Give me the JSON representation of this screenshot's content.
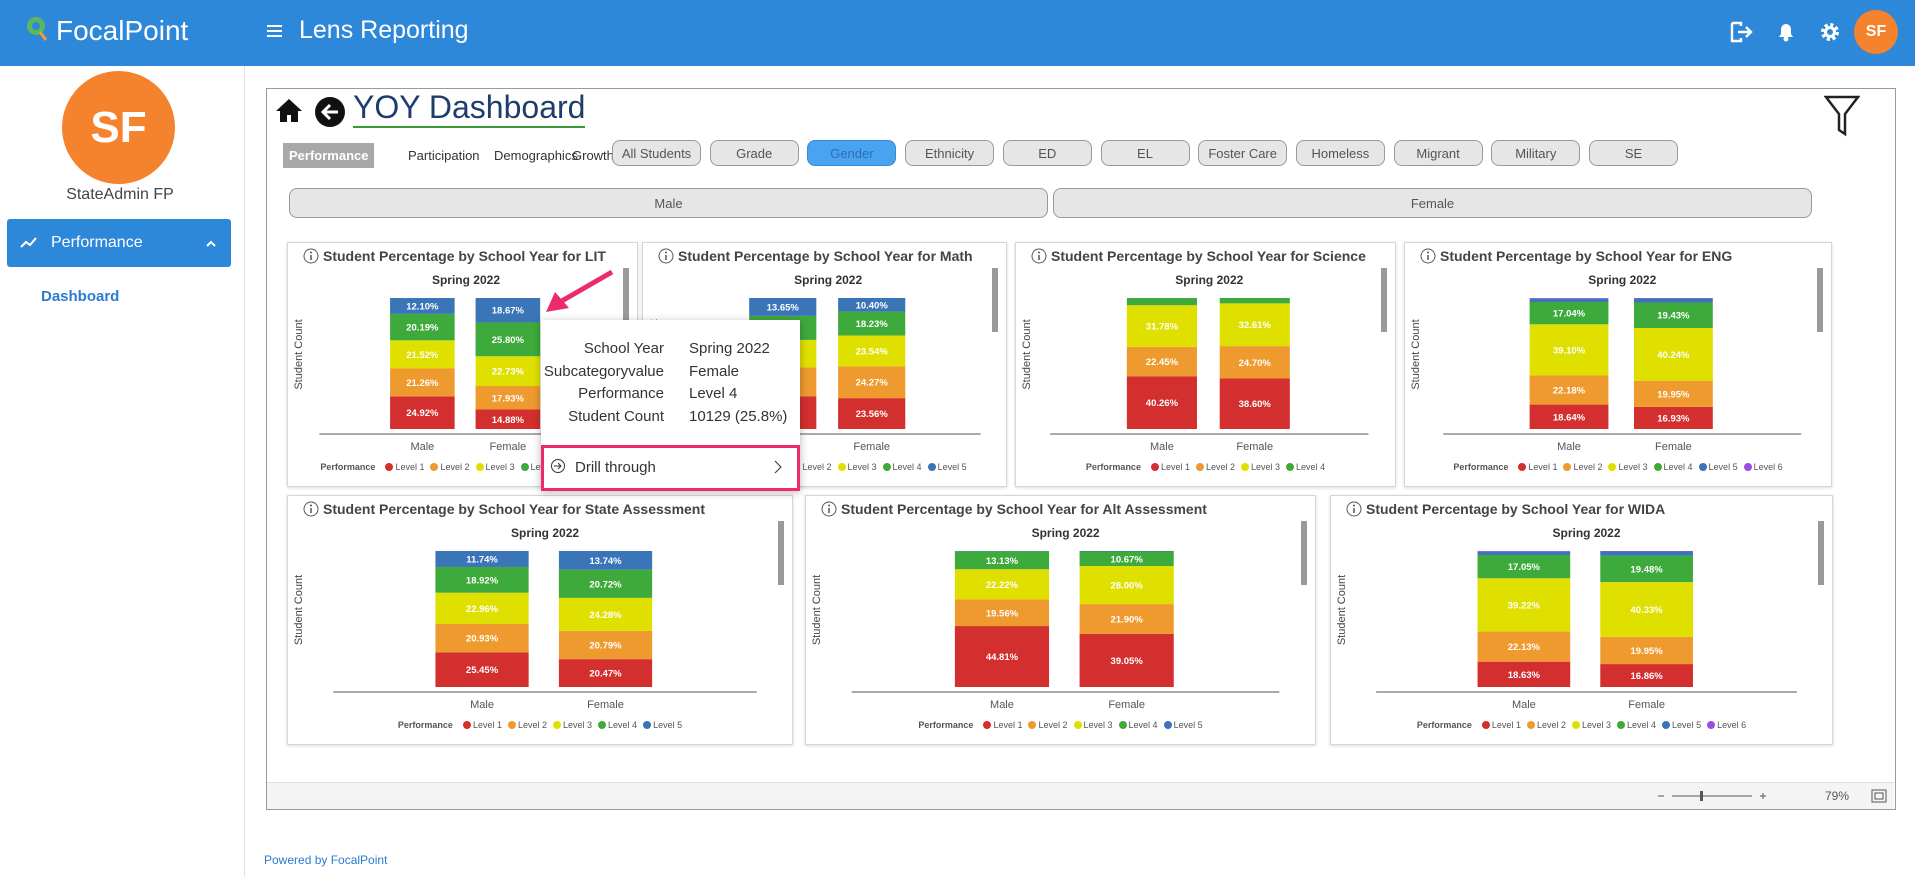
{
  "header": {
    "logo": "FocalPoint",
    "title": "Lens Reporting",
    "avatar": "SF"
  },
  "sidebar": {
    "avatar": "SF",
    "user": "StateAdmin FP",
    "menu": "Performance",
    "submenu": "Dashboard"
  },
  "dashboard": {
    "title": "YOY Dashboard",
    "tabs": [
      "Performance",
      "Participation",
      "Demographics",
      "Growth"
    ],
    "filters": [
      "All Students",
      "Grade",
      "Gender",
      "Ethnicity",
      "ED",
      "EL",
      "Foster Care",
      "Homeless",
      "Migrant",
      "Military",
      "SE"
    ],
    "groups": [
      "Male",
      "Female"
    ],
    "zoom": "79%"
  },
  "tooltip": {
    "rows": [
      [
        "School Year",
        "Spring 2022"
      ],
      [
        "Subcategoryvalue",
        "Female"
      ],
      [
        "Performance",
        "Level 4"
      ],
      [
        "Student Count",
        "10129 (25.8%)"
      ]
    ],
    "action": "Drill through"
  },
  "footer": "Powered by FocalPoint",
  "chart_data": [
    {
      "type": "bar",
      "stacked": true,
      "title": "Student Percentage by School Year for LIT",
      "subtitle": "Spring 2022",
      "y_label": "Student Count",
      "categories": [
        "Male",
        "Female"
      ],
      "legend_title": "Performance",
      "series": [
        {
          "name": "Level 1",
          "color": "#d32f2f",
          "values": [
            24.92,
            14.88
          ],
          "value_labels": [
            "24.92%",
            "14.88%"
          ]
        },
        {
          "name": "Level 2",
          "color": "#ee9a2e",
          "values": [
            21.26,
            17.93
          ],
          "value_labels": [
            "21.26%",
            "17.93%"
          ]
        },
        {
          "name": "Level 3",
          "color": "#e0e000",
          "values": [
            21.52,
            22.73
          ],
          "value_labels": [
            "21.52%",
            "22.73%"
          ]
        },
        {
          "name": "Level 4",
          "color": "#3eaa3c",
          "values": [
            20.19,
            25.8
          ],
          "value_labels": [
            "20.19%",
            "25.80%"
          ]
        },
        {
          "name": "Level 5",
          "color": "#3a75b8",
          "values": [
            12.1,
            18.67
          ],
          "value_labels": [
            "12.10%",
            "18.67%"
          ]
        }
      ]
    },
    {
      "type": "bar",
      "stacked": true,
      "title": "Student Percentage by School Year for Math",
      "subtitle": "Spring 2022",
      "y_label": "Student Count",
      "categories": [
        "Male",
        "Female"
      ],
      "legend_title": "Performance",
      "series": [
        {
          "name": "Level 1",
          "color": "#d32f2f",
          "values": [
            25,
            23.56
          ],
          "value_labels": [
            null,
            "23.56%"
          ]
        },
        {
          "name": "Level 2",
          "color": "#ee9a2e",
          "values": [
            22,
            24.27
          ],
          "value_labels": [
            null,
            "24.27%"
          ]
        },
        {
          "name": "Level 3",
          "color": "#e0e000",
          "values": [
            21,
            23.54
          ],
          "value_labels": [
            null,
            "23.54%"
          ]
        },
        {
          "name": "Level 4",
          "color": "#3eaa3c",
          "values": [
            18.35,
            18.23
          ],
          "value_labels": [
            null,
            "18.23%"
          ]
        },
        {
          "name": "Level 5",
          "color": "#3a75b8",
          "values": [
            13.65,
            10.4
          ],
          "value_labels": [
            "13.65%",
            "10.40%"
          ]
        }
      ]
    },
    {
      "type": "bar",
      "stacked": true,
      "title": "Student Percentage by School Year for Science",
      "subtitle": "Spring 2022",
      "y_label": "Student Count",
      "categories": [
        "Male",
        "Female"
      ],
      "legend_title": "Performance",
      "series": [
        {
          "name": "Level 1",
          "color": "#d32f2f",
          "values": [
            40.26,
            38.6
          ],
          "value_labels": [
            "40.26%",
            "38.60%"
          ]
        },
        {
          "name": "Level 2",
          "color": "#ee9a2e",
          "values": [
            22.45,
            24.7
          ],
          "value_labels": [
            "22.45%",
            "24.70%"
          ]
        },
        {
          "name": "Level 3",
          "color": "#e0e000",
          "values": [
            31.78,
            32.61
          ],
          "value_labels": [
            "31.78%",
            "32.61%"
          ]
        },
        {
          "name": "Level 4",
          "color": "#3eaa3c",
          "values": [
            5.5,
            4.1
          ],
          "value_labels": [
            null,
            null
          ]
        }
      ]
    },
    {
      "type": "bar",
      "stacked": true,
      "title": "Student Percentage by School Year for ENG",
      "subtitle": "Spring 2022",
      "y_label": "Student Count",
      "categories": [
        "Male",
        "Female"
      ],
      "legend_title": "Performance",
      "series": [
        {
          "name": "Level 1",
          "color": "#d32f2f",
          "values": [
            18.64,
            16.93
          ],
          "value_labels": [
            "18.64%",
            "16.93%"
          ]
        },
        {
          "name": "Level 2",
          "color": "#ee9a2e",
          "values": [
            22.18,
            19.95
          ],
          "value_labels": [
            "22.18%",
            "19.95%"
          ]
        },
        {
          "name": "Level 3",
          "color": "#e0e000",
          "values": [
            39.1,
            40.24
          ],
          "value_labels": [
            "39.10%",
            "40.24%"
          ]
        },
        {
          "name": "Level 4",
          "color": "#3eaa3c",
          "values": [
            17.04,
            19.43
          ],
          "value_labels": [
            "17.04%",
            "19.43%"
          ]
        },
        {
          "name": "Level 5",
          "color": "#3a75b8",
          "values": [
            2.5,
            3
          ],
          "value_labels": [
            null,
            null
          ]
        },
        {
          "name": "Level 6",
          "color": "#9b4de0",
          "values": [
            0.54,
            0.45
          ],
          "value_labels": [
            null,
            null
          ]
        }
      ]
    },
    {
      "type": "bar",
      "stacked": true,
      "title": "Student Percentage by School Year for State Assessment",
      "subtitle": "Spring 2022",
      "y_label": "Student Count",
      "categories": [
        "Male",
        "Female"
      ],
      "legend_title": "Performance",
      "series": [
        {
          "name": "Level 1",
          "color": "#d32f2f",
          "values": [
            25.45,
            20.47
          ],
          "value_labels": [
            "25.45%",
            "20.47%"
          ]
        },
        {
          "name": "Level 2",
          "color": "#ee9a2e",
          "values": [
            20.93,
            20.79
          ],
          "value_labels": [
            "20.93%",
            "20.79%"
          ]
        },
        {
          "name": "Level 3",
          "color": "#e0e000",
          "values": [
            22.96,
            24.28
          ],
          "value_labels": [
            "22.96%",
            "24.28%"
          ]
        },
        {
          "name": "Level 4",
          "color": "#3eaa3c",
          "values": [
            18.92,
            20.72
          ],
          "value_labels": [
            "18.92%",
            "20.72%"
          ]
        },
        {
          "name": "Level 5",
          "color": "#3a75b8",
          "values": [
            11.74,
            13.74
          ],
          "value_labels": [
            "11.74%",
            "13.74%"
          ]
        }
      ]
    },
    {
      "type": "bar",
      "stacked": true,
      "title": "Student Percentage by School Year for Alt Assessment",
      "subtitle": "Spring 2022",
      "y_label": "Student Count",
      "categories": [
        "Male",
        "Female"
      ],
      "legend_title": "Performance",
      "series": [
        {
          "name": "Level 1",
          "color": "#d32f2f",
          "values": [
            44.81,
            39.05
          ],
          "value_labels": [
            "44.81%",
            "39.05%"
          ]
        },
        {
          "name": "Level 2",
          "color": "#ee9a2e",
          "values": [
            19.56,
            21.9
          ],
          "value_labels": [
            "19.56%",
            "21.90%"
          ]
        },
        {
          "name": "Level 3",
          "color": "#e0e000",
          "values": [
            22.22,
            28
          ],
          "value_labels": [
            "22.22%",
            "28.00%"
          ]
        },
        {
          "name": "Level 4",
          "color": "#3eaa3c",
          "values": [
            13.13,
            10.67
          ],
          "value_labels": [
            "13.13%",
            "10.67%"
          ]
        },
        {
          "name": "Level 5",
          "color": "#3a75b8",
          "values": [
            0.28,
            0.38
          ],
          "value_labels": [
            null,
            null
          ]
        }
      ]
    },
    {
      "type": "bar",
      "stacked": true,
      "title": "Student Percentage by School Year for WIDA",
      "subtitle": "Spring 2022",
      "y_label": "Student Count",
      "categories": [
        "Male",
        "Female"
      ],
      "legend_title": "Performance",
      "series": [
        {
          "name": "Level 1",
          "color": "#d32f2f",
          "values": [
            18.63,
            16.86
          ],
          "value_labels": [
            "18.63%",
            "16.86%"
          ]
        },
        {
          "name": "Level 2",
          "color": "#ee9a2e",
          "values": [
            22.13,
            19.95
          ],
          "value_labels": [
            "22.13%",
            "19.95%"
          ]
        },
        {
          "name": "Level 3",
          "color": "#e0e000",
          "values": [
            39.22,
            40.33
          ],
          "value_labels": [
            "39.22%",
            "40.33%"
          ]
        },
        {
          "name": "Level 4",
          "color": "#3eaa3c",
          "values": [
            17.05,
            19.48
          ],
          "value_labels": [
            "17.05%",
            "19.48%"
          ]
        },
        {
          "name": "Level 5",
          "color": "#3a75b8",
          "values": [
            2.5,
            3
          ],
          "value_labels": [
            null,
            null
          ]
        },
        {
          "name": "Level 6",
          "color": "#9b4de0",
          "values": [
            0.47,
            0.38
          ],
          "value_labels": [
            null,
            null
          ]
        }
      ]
    }
  ]
}
